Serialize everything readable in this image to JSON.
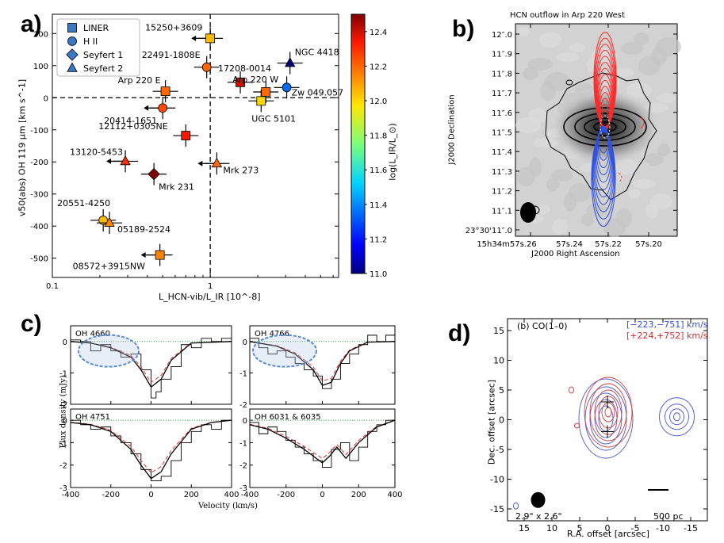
{
  "panel_letters": [
    "a)",
    "b)",
    "c)",
    "d)"
  ],
  "colors": {
    "liner": "#3a78c4",
    "marker_edge": "#000000",
    "contour_red": "#ff2a2a",
    "contour_blue": "#3050e0",
    "contour_black": "#000000"
  },
  "chart_data": [
    {
      "type": "scatter",
      "title": "",
      "xlabel": "L_HCN-vib/L_IR [10^-8]",
      "ylabel": "v50(abs) OH 119 µm [km s^-1]",
      "xscale": "log",
      "xlim": [
        0.1,
        6.5
      ],
      "ylim": [
        -560,
        260
      ],
      "xticks": [
        {
          "v": 0.1,
          "label": "0.1"
        },
        {
          "v": 1,
          "label": "1"
        }
      ],
      "yticks": [
        -500,
        -400,
        -300,
        -200,
        -100,
        0,
        100,
        200
      ],
      "colorbar": {
        "label": "log(L_IR/L_⊙)",
        "min": 11.0,
        "max": 12.5,
        "ticks": [
          "12.4",
          "12.2",
          "12.0",
          "11.8",
          "11.6",
          "11.4",
          "11.2",
          "11.0"
        ]
      },
      "legend": [
        "LINER",
        "H II",
        "Seyfert 1",
        "Seyfert 2"
      ],
      "reference_lines": {
        "x": 1,
        "y": 0
      },
      "points": [
        {
          "name": "15250+3609",
          "x": 1.0,
          "y": 185,
          "type": "square",
          "logLIR": 12.05,
          "upper_limit": true
        },
        {
          "name": "22491-1808E",
          "x": 0.95,
          "y": 95,
          "type": "circle",
          "logLIR": 12.2
        },
        {
          "name": "17208-0014",
          "x": 1.55,
          "y": 48,
          "type": "square",
          "logLIR": 12.4
        },
        {
          "name": "NGC 4418",
          "x": 3.2,
          "y": 108,
          "type": "triangle",
          "logLIR": 11.0
        },
        {
          "name": "Arp 220 W",
          "x": 2.25,
          "y": 18,
          "type": "square",
          "logLIR": 12.2
        },
        {
          "name": "Zw 049.057",
          "x": 3.05,
          "y": 32,
          "type": "circle",
          "logLIR": 11.35
        },
        {
          "name": "Arp 220 E",
          "x": 0.52,
          "y": 20,
          "type": "square",
          "logLIR": 12.2
        },
        {
          "name": "UGC 5101",
          "x": 2.1,
          "y": -10,
          "type": "square",
          "logLIR": 12.0
        },
        {
          "name": "20414-1651",
          "x": 0.5,
          "y": -32,
          "type": "circle",
          "logLIR": 12.25,
          "upper_limit": true
        },
        {
          "name": "12112+0305NE",
          "x": 0.7,
          "y": -118,
          "type": "square",
          "logLIR": 12.35
        },
        {
          "name": "13120-5453",
          "x": 0.29,
          "y": -198,
          "type": "triangle",
          "logLIR": 12.3,
          "upper_limit": true
        },
        {
          "name": "Mrk 231",
          "x": 0.44,
          "y": -238,
          "type": "diamond",
          "logLIR": 12.55
        },
        {
          "name": "Mrk 273",
          "x": 1.1,
          "y": -205,
          "type": "triangle",
          "logLIR": 12.2,
          "upper_limit": true
        },
        {
          "name": "20551-4250",
          "x": 0.21,
          "y": -382,
          "type": "circle",
          "logLIR": 12.05
        },
        {
          "name": "05189-2524",
          "x": 0.23,
          "y": -390,
          "type": "triangle",
          "logLIR": 12.15
        },
        {
          "name": "08572+3915NW",
          "x": 0.48,
          "y": -490,
          "type": "square",
          "logLIR": 12.15,
          "upper_limit": true
        }
      ]
    },
    {
      "type": "heatmap",
      "title": "HCN outflow in Arp 220 West",
      "xlabel": "J2000 Right Ascension",
      "ylabel": "J2000 Declination",
      "xticks": [
        "15h34m57s.26",
        "57s.24",
        "57s.22",
        "57s.20"
      ],
      "yticks": [
        "12''.0",
        "11''.9",
        "11''.8",
        "11''.7",
        "11''.6",
        "11''.5",
        "11''.4",
        "11''.3",
        "11''.2",
        "11''.1",
        "23°30'11''.0"
      ]
    },
    {
      "type": "line",
      "xlabel": "Velocity (km/s)",
      "ylabel": "Flux density (mJy)",
      "xlim": [
        -400,
        400
      ],
      "xticks": [
        -400,
        -200,
        0,
        200,
        400
      ],
      "subplots": [
        {
          "label": "OH 4660",
          "ylim": [
            -2,
            0.5
          ],
          "yticks": [
            0,
            -1,
            -2
          ],
          "fit": [
            [
              -400,
              0
            ],
            [
              -300,
              -0.05
            ],
            [
              -200,
              -0.2
            ],
            [
              -100,
              -0.5
            ],
            [
              -50,
              -0.9
            ],
            [
              0,
              -1.45
            ],
            [
              50,
              -1.2
            ],
            [
              100,
              -0.6
            ],
            [
              200,
              -0.05
            ],
            [
              400,
              0
            ]
          ],
          "spectrum": [
            [
              -400,
              0.05
            ],
            [
              -350,
              0
            ],
            [
              -300,
              -0.3
            ],
            [
              -250,
              -0.1
            ],
            [
              -200,
              -0.3
            ],
            [
              -150,
              -0.5
            ],
            [
              -100,
              -0.4
            ],
            [
              -50,
              -0.9
            ],
            [
              0,
              -1.8
            ],
            [
              25,
              -1.6
            ],
            [
              50,
              -1.2
            ],
            [
              100,
              -0.8
            ],
            [
              150,
              -0.1
            ],
            [
              200,
              -0.2
            ],
            [
              250,
              0.1
            ],
            [
              300,
              0
            ],
            [
              350,
              0.1
            ],
            [
              400,
              0
            ]
          ]
        },
        {
          "label": "OH 4766",
          "ylim": [
            -2,
            0.5
          ],
          "yticks": [
            0,
            -1,
            -2
          ],
          "fit": [
            [
              -400,
              0
            ],
            [
              -250,
              -0.15
            ],
            [
              -150,
              -0.4
            ],
            [
              -50,
              -0.9
            ],
            [
              0,
              -1.4
            ],
            [
              50,
              -1.3
            ],
            [
              100,
              -0.7
            ],
            [
              150,
              -0.3
            ],
            [
              250,
              -0.02
            ],
            [
              400,
              0
            ]
          ],
          "spectrum": [
            [
              -400,
              0.1
            ],
            [
              -350,
              -0.2
            ],
            [
              -300,
              -0.4
            ],
            [
              -250,
              -0.3
            ],
            [
              -200,
              -0.5
            ],
            [
              -150,
              -0.7
            ],
            [
              -100,
              -0.9
            ],
            [
              -50,
              -1.1
            ],
            [
              0,
              -1.5
            ],
            [
              50,
              -1.2
            ],
            [
              100,
              -0.7
            ],
            [
              150,
              -0.4
            ],
            [
              200,
              -0.1
            ],
            [
              250,
              0.2
            ],
            [
              300,
              0
            ],
            [
              350,
              0.2
            ],
            [
              400,
              0.1
            ]
          ]
        },
        {
          "label": "OH 4751",
          "ylim": [
            -3,
            0.5
          ],
          "yticks": [
            0,
            -1,
            -2,
            -3
          ],
          "fit": [
            [
              -400,
              -0.1
            ],
            [
              -300,
              -0.2
            ],
            [
              -200,
              -0.5
            ],
            [
              -100,
              -1.3
            ],
            [
              -50,
              -2.0
            ],
            [
              0,
              -2.6
            ],
            [
              50,
              -2.3
            ],
            [
              100,
              -1.5
            ],
            [
              200,
              -0.4
            ],
            [
              300,
              -0.1
            ],
            [
              400,
              0
            ]
          ],
          "spectrum": [
            [
              -400,
              0
            ],
            [
              -350,
              -0.2
            ],
            [
              -300,
              -0.4
            ],
            [
              -250,
              -0.3
            ],
            [
              -200,
              -0.7
            ],
            [
              -150,
              -1.0
            ],
            [
              -100,
              -1.5
            ],
            [
              -50,
              -2.2
            ],
            [
              0,
              -2.7
            ],
            [
              50,
              -2.5
            ],
            [
              100,
              -1.8
            ],
            [
              150,
              -1.0
            ],
            [
              200,
              -0.5
            ],
            [
              250,
              -0.2
            ],
            [
              300,
              -0.4
            ],
            [
              350,
              0
            ],
            [
              400,
              -0.1
            ]
          ]
        },
        {
          "label": "OH 6031 & 6035",
          "ylim": [
            -3,
            0.5
          ],
          "yticks": [
            0,
            -1,
            -2,
            -3
          ],
          "fit": [
            [
              -400,
              -0.2
            ],
            [
              -300,
              -0.4
            ],
            [
              -200,
              -0.8
            ],
            [
              -100,
              -1.3
            ],
            [
              0,
              -1.9
            ],
            [
              40,
              -1.6
            ],
            [
              80,
              -1.2
            ],
            [
              130,
              -1.7
            ],
            [
              200,
              -1.0
            ],
            [
              300,
              -0.3
            ],
            [
              400,
              0
            ]
          ],
          "spectrum": [
            [
              -400,
              -0.1
            ],
            [
              -350,
              -0.6
            ],
            [
              -300,
              -0.3
            ],
            [
              -250,
              -0.5
            ],
            [
              -200,
              -0.9
            ],
            [
              -150,
              -1.2
            ],
            [
              -100,
              -1.5
            ],
            [
              -50,
              -1.8
            ],
            [
              0,
              -2.1
            ],
            [
              50,
              -1.3
            ],
            [
              100,
              -1.0
            ],
            [
              150,
              -1.8
            ],
            [
              200,
              -1.2
            ],
            [
              250,
              -0.5
            ],
            [
              300,
              -0.2
            ],
            [
              350,
              0
            ],
            [
              400,
              -0.1
            ]
          ]
        }
      ]
    },
    {
      "type": "heatmap",
      "title": "(b)  CO(1–0)",
      "xlabel": "R.A. offset [arcsec]",
      "ylabel": "Dec. offset [arcsec]",
      "xlim": [
        18,
        -18
      ],
      "ylim": [
        -17,
        17
      ],
      "xticks": [
        15,
        10,
        5,
        0,
        -5,
        -10,
        -15
      ],
      "yticks": [
        15,
        10,
        5,
        0,
        -5,
        -10,
        -15
      ],
      "legend": [
        "[−223,−751] km/s",
        "[+224,+752] km/s"
      ],
      "beam_label": "2.9\" x 2.6\"",
      "scalebar_label": "500 pc"
    }
  ]
}
